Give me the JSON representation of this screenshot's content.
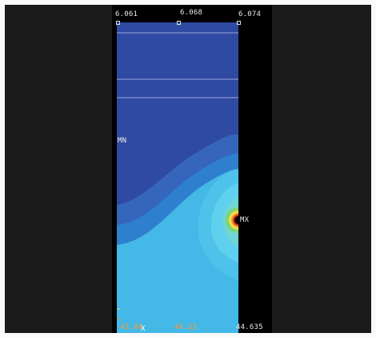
{
  "viewport": {
    "top_labels": {
      "left": "6.061",
      "center": "6.068",
      "right": "6.074"
    },
    "bottom_labels": {
      "left": "43.84",
      "center": "44.23",
      "right": "44.635"
    },
    "min_marker": "MN",
    "max_marker": "MX",
    "axis_marker": "X"
  },
  "colors": {
    "background": "#1b1b1b",
    "deep_blue": "#2f4aa3",
    "mid_blue": "#3566bb",
    "light_blue": "#2f7fcf",
    "cyan": "#44b8e6",
    "light_cyan": "#5fd0ee",
    "green": "#7ed66e",
    "yellow": "#f0e04a",
    "orange": "#f09a2a",
    "red": "#d83020",
    "grid_line": "#9aa6d8"
  }
}
